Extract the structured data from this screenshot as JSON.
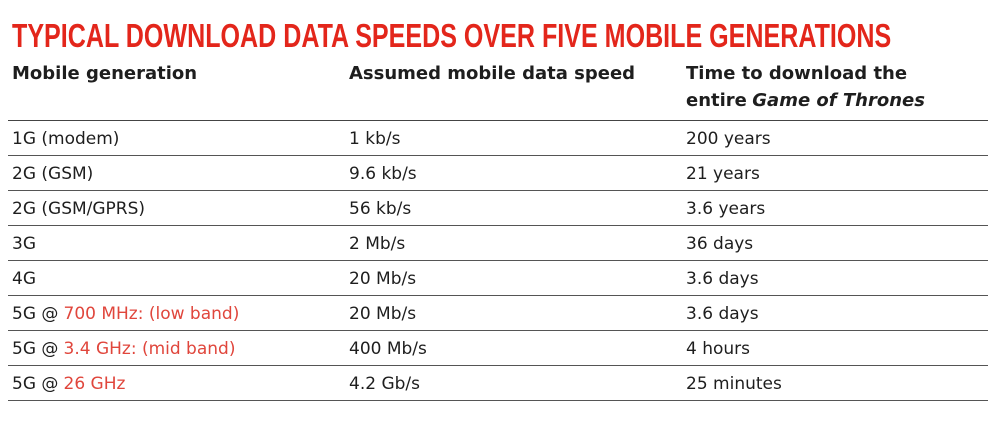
{
  "header": {
    "title": "TYPICAL DOWNLOAD DATA SPEEDS OVER FIVE MOBILE GENERATIONS"
  },
  "table": {
    "columns": [
      {
        "text": "Mobile generation"
      },
      {
        "text": "Assumed mobile data speed"
      },
      {
        "text": "Time to download the entire",
        "emphasis": "Game of Thrones"
      }
    ],
    "rows": [
      [
        {
          "text": "1G (modem)"
        },
        "1 kb/s",
        "200 years"
      ],
      [
        {
          "text": "2G (GSM)"
        },
        "9.6 kb/s",
        "21 years"
      ],
      [
        {
          "text": "2G (GSM/GPRS)"
        },
        "56 kb/s",
        "3.6 years"
      ],
      [
        {
          "text": "3G"
        },
        "2 Mb/s",
        "36 days"
      ],
      [
        {
          "text": "4G"
        },
        "20 Mb/s",
        "3.6 days"
      ],
      [
        {
          "text": "5G @",
          "highlight": "700 MHz: (low band)"
        },
        "20 Mb/s",
        "3.6 days"
      ],
      [
        {
          "text": "5G @",
          "highlight": "3.4 GHz: (mid band)"
        },
        "400 Mb/s",
        "4 hours"
      ],
      [
        {
          "text": "5G @",
          "highlight": "26 GHz"
        },
        "4.2 Gb/s",
        "25 minutes"
      ]
    ]
  }
}
